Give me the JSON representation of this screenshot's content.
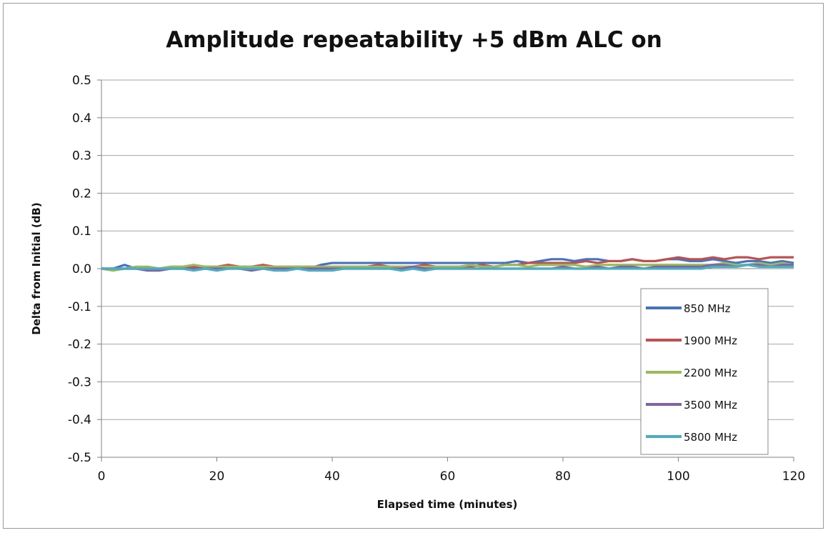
{
  "chart_data": {
    "type": "line",
    "title": "Amplitude repeatability +5 dBm ALC on",
    "xlabel": "Elapsed time (minutes)",
    "ylabel": "Delta from Initial (dB)",
    "xlim": [
      0,
      120
    ],
    "ylim": [
      -0.5,
      0.5
    ],
    "xticks": [
      0,
      20,
      40,
      60,
      80,
      100,
      120
    ],
    "xtick_labels": [
      "0",
      "20",
      "40",
      "60",
      "80",
      "100",
      "120"
    ],
    "yticks": [
      0.5,
      0.4,
      0.3,
      0.2,
      0.1,
      0.0,
      -0.1,
      -0.2,
      -0.3,
      -0.4,
      -0.5
    ],
    "ytick_labels": [
      "0.5",
      "0.4",
      "0.3",
      "0.2",
      "0.1",
      "0.0",
      "-0.1",
      "-0.2",
      "-0.3",
      "-0.4",
      "-0.5"
    ],
    "grid": "horizontal",
    "legend_position": "bottom-right",
    "x": [
      0,
      2,
      4,
      6,
      8,
      10,
      12,
      14,
      16,
      18,
      20,
      22,
      24,
      26,
      28,
      30,
      32,
      34,
      36,
      38,
      40,
      42,
      44,
      46,
      48,
      50,
      52,
      54,
      56,
      58,
      60,
      62,
      64,
      66,
      68,
      70,
      72,
      74,
      76,
      78,
      80,
      82,
      84,
      86,
      88,
      90,
      92,
      94,
      96,
      98,
      100,
      102,
      104,
      106,
      108,
      110,
      112,
      114,
      116,
      118,
      120
    ],
    "series": [
      {
        "name": "850 MHz",
        "color": "#4472c4",
        "values": [
          0,
          0,
          0.01,
          0,
          0,
          0,
          0,
          0,
          0,
          0,
          0,
          0.005,
          0,
          0,
          0.005,
          0,
          0,
          0.005,
          0,
          0.01,
          0.015,
          0.015,
          0.015,
          0.015,
          0.015,
          0.015,
          0.015,
          0.015,
          0.015,
          0.015,
          0.015,
          0.015,
          0.015,
          0.015,
          0.015,
          0.015,
          0.02,
          0.015,
          0.02,
          0.025,
          0.025,
          0.02,
          0.025,
          0.025,
          0.02,
          0.02,
          0.025,
          0.02,
          0.02,
          0.025,
          0.025,
          0.02,
          0.02,
          0.025,
          0.02,
          0.015,
          0.02,
          0.02,
          0.015,
          0.02,
          0.015
        ]
      },
      {
        "name": "1900 MHz",
        "color": "#c0504d",
        "values": [
          0,
          0,
          0,
          0,
          0.005,
          0,
          0.005,
          0.005,
          0.005,
          0.005,
          0.005,
          0.01,
          0.005,
          0.005,
          0.01,
          0.005,
          0.005,
          0.005,
          0.005,
          0.005,
          0.005,
          0.005,
          0.005,
          0.005,
          0.01,
          0.005,
          0.005,
          0.005,
          0.01,
          0.005,
          0.005,
          0.005,
          0.005,
          0.01,
          0.005,
          0.01,
          0.01,
          0.015,
          0.015,
          0.015,
          0.015,
          0.015,
          0.02,
          0.015,
          0.02,
          0.02,
          0.025,
          0.02,
          0.02,
          0.025,
          0.03,
          0.025,
          0.025,
          0.03,
          0.025,
          0.03,
          0.03,
          0.025,
          0.03,
          0.03,
          0.03
        ]
      },
      {
        "name": "2200 MHz",
        "color": "#9bbb59",
        "values": [
          0,
          -0.005,
          0,
          0.005,
          0.005,
          0,
          0.005,
          0.005,
          0.01,
          0.005,
          0.005,
          0.005,
          0.005,
          0.005,
          0.005,
          0.005,
          0.005,
          0.005,
          0.005,
          0.005,
          0.005,
          0.005,
          0.005,
          0.005,
          0.005,
          0.005,
          0.005,
          0.005,
          0.005,
          0.005,
          0.005,
          0.005,
          0.01,
          0.005,
          0.005,
          0.01,
          0.01,
          0.005,
          0.01,
          0.01,
          0.01,
          0.01,
          0.005,
          0.01,
          0.01,
          0.01,
          0.01,
          0.01,
          0.01,
          0.01,
          0.01,
          0.01,
          0.01,
          0.01,
          0.015,
          0.01,
          0.01,
          0.015,
          0.01,
          0.015,
          0.01
        ]
      },
      {
        "name": "3500 MHz",
        "color": "#8064a2",
        "values": [
          0,
          0,
          0,
          0,
          -0.005,
          -0.005,
          0,
          0,
          0,
          0,
          0,
          0,
          0,
          -0.005,
          0,
          0,
          0,
          0,
          0,
          0,
          0,
          0,
          0,
          0,
          0,
          0,
          0,
          0.005,
          0,
          0,
          0,
          0,
          0,
          0,
          0,
          0,
          0,
          0,
          0,
          0,
          0.005,
          0,
          0,
          0.005,
          0,
          0.005,
          0.005,
          0,
          0.005,
          0.005,
          0.005,
          0.005,
          0.005,
          0.01,
          0.01,
          0.005,
          0.01,
          0.01,
          0.005,
          0.01,
          0.01
        ]
      },
      {
        "name": "5800 MHz",
        "color": "#4bacc6",
        "values": [
          0,
          0,
          0,
          0,
          0,
          0,
          0,
          0,
          -0.005,
          0,
          -0.005,
          0,
          0,
          0,
          0,
          -0.005,
          -0.005,
          0,
          -0.005,
          -0.005,
          -0.005,
          0,
          0,
          0,
          0,
          0,
          -0.005,
          0,
          -0.005,
          0,
          0,
          0,
          0,
          0,
          0,
          0,
          0,
          0,
          0,
          0,
          0,
          0,
          0,
          0,
          0,
          0,
          0,
          0,
          0,
          0,
          0,
          0,
          0,
          0.005,
          0.005,
          0.005,
          0.01,
          0.005,
          0.005,
          0.005,
          0.005
        ]
      }
    ]
  }
}
